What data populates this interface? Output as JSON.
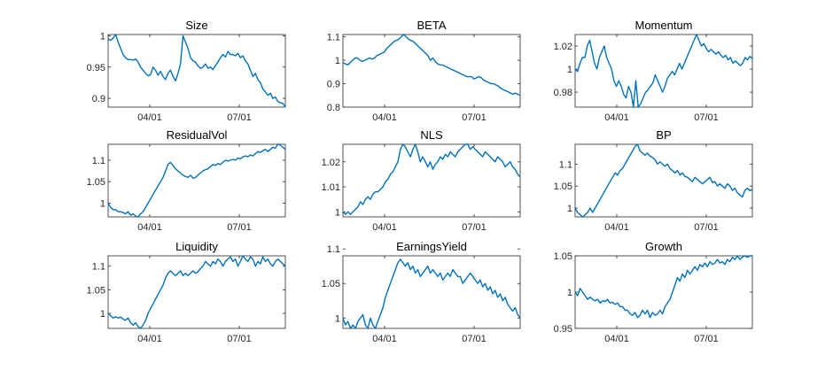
{
  "figure": {
    "line_color": "#0072BD"
  },
  "chart_data": [
    {
      "type": "line",
      "title": "Size",
      "xlabel": "",
      "ylabel": "",
      "x_ticks": [
        "04/01",
        "07/01"
      ],
      "y_ticks": [
        "0.9",
        "0.95",
        "1"
      ],
      "y_tick_values": [
        0.9,
        0.95,
        1.0
      ],
      "ylim": [
        0.886,
        1.002
      ],
      "series": [
        {
          "values": [
            0.995,
            0.993,
            0.996,
            1.002,
            0.99,
            0.98,
            0.97,
            0.965,
            0.962,
            0.962,
            0.961,
            0.963,
            0.958,
            0.95,
            0.945,
            0.94,
            0.936,
            0.938,
            0.95,
            0.945,
            0.937,
            0.943,
            0.935,
            0.93,
            0.94,
            0.945,
            0.935,
            0.928,
            0.94,
            0.955,
            1.0,
            0.99,
            0.98,
            0.965,
            0.96,
            0.958,
            0.952,
            0.948,
            0.95,
            0.955,
            0.948,
            0.95,
            0.946,
            0.952,
            0.958,
            0.965,
            0.97,
            0.966,
            0.975,
            0.97,
            0.97,
            0.968,
            0.972,
            0.965,
            0.968,
            0.96,
            0.955,
            0.945,
            0.935,
            0.94,
            0.93,
            0.925,
            0.915,
            0.91,
            0.905,
            0.908,
            0.9,
            0.902,
            0.895,
            0.893,
            0.892,
            0.886
          ]
        }
      ]
    },
    {
      "type": "line",
      "title": "BETA",
      "xlabel": "",
      "ylabel": "",
      "x_ticks": [
        "04/01",
        "07/01"
      ],
      "y_ticks": [
        "0.8",
        "0.9",
        "1",
        "1.1"
      ],
      "y_tick_values": [
        0.8,
        0.9,
        1.0,
        1.1
      ],
      "ylim": [
        0.8,
        1.11
      ],
      "series": [
        {
          "values": [
            0.99,
            0.985,
            0.98,
            0.99,
            1.0,
            1.01,
            1.01,
            1.0,
            0.995,
            1.0,
            1.005,
            1.01,
            1.005,
            1.01,
            1.02,
            1.025,
            1.03,
            1.035,
            1.05,
            1.06,
            1.07,
            1.08,
            1.085,
            1.09,
            1.1,
            1.11,
            1.1,
            1.09,
            1.085,
            1.08,
            1.07,
            1.06,
            1.05,
            1.04,
            1.03,
            1.02,
            1.0,
            1.01,
            0.995,
            0.985,
            0.98,
            0.98,
            0.975,
            0.97,
            0.965,
            0.96,
            0.955,
            0.95,
            0.945,
            0.94,
            0.935,
            0.93,
            0.93,
            0.93,
            0.92,
            0.925,
            0.93,
            0.925,
            0.915,
            0.91,
            0.905,
            0.9,
            0.9,
            0.895,
            0.89,
            0.88,
            0.875,
            0.87,
            0.865,
            0.86,
            0.855,
            0.86,
            0.855,
            0.85
          ]
        }
      ]
    },
    {
      "type": "line",
      "title": "Momentum",
      "xlabel": "",
      "ylabel": "",
      "x_ticks": [
        "04/01",
        "07/01"
      ],
      "y_ticks": [
        "0.98",
        "1",
        "1.02"
      ],
      "y_tick_values": [
        0.98,
        1.0,
        1.02
      ],
      "ylim": [
        0.967,
        1.03
      ],
      "series": [
        {
          "values": [
            1.0,
            0.998,
            1.005,
            1.01,
            1.01,
            1.02,
            1.025,
            1.015,
            1.005,
            1.0,
            1.01,
            1.015,
            1.02,
            1.01,
            1.005,
            1.0,
            0.99,
            0.985,
            0.99,
            0.985,
            0.978,
            0.975,
            0.985,
            0.98,
            0.967,
            0.99,
            0.967,
            0.97,
            0.975,
            0.98,
            0.982,
            0.985,
            0.988,
            0.995,
            0.99,
            0.985,
            0.98,
            0.985,
            0.992,
            0.995,
            0.998,
            0.995,
            1.0,
            1.005,
            1.0,
            1.005,
            1.01,
            1.015,
            1.02,
            1.025,
            1.03,
            1.025,
            1.02,
            1.022,
            1.018,
            1.015,
            1.017,
            1.015,
            1.013,
            1.015,
            1.012,
            1.01,
            1.012,
            1.008,
            1.01,
            1.005,
            1.007,
            1.005,
            1.003,
            1.005,
            1.01,
            1.008,
            1.011,
            1.009
          ]
        }
      ]
    },
    {
      "type": "line",
      "title": "ResidualVol",
      "xlabel": "",
      "ylabel": "",
      "x_ticks": [
        "04/01",
        "07/01"
      ],
      "y_ticks": [
        "1",
        "1.05",
        "1.1"
      ],
      "y_tick_values": [
        1.0,
        1.05,
        1.1
      ],
      "ylim": [
        0.968,
        1.137
      ],
      "series": [
        {
          "values": [
            1.0,
            0.99,
            0.985,
            0.985,
            0.98,
            0.98,
            0.978,
            0.975,
            0.98,
            0.972,
            0.975,
            0.97,
            0.968,
            0.975,
            0.98,
            0.99,
            1.0,
            1.01,
            1.02,
            1.03,
            1.04,
            1.05,
            1.06,
            1.075,
            1.09,
            1.095,
            1.088,
            1.08,
            1.075,
            1.07,
            1.065,
            1.062,
            1.06,
            1.065,
            1.058,
            1.06,
            1.065,
            1.07,
            1.075,
            1.078,
            1.08,
            1.085,
            1.09,
            1.088,
            1.092,
            1.09,
            1.095,
            1.1,
            1.098,
            1.1,
            1.102,
            1.1,
            1.105,
            1.103,
            1.108,
            1.11,
            1.108,
            1.112,
            1.11,
            1.115,
            1.12,
            1.118,
            1.122,
            1.125,
            1.12,
            1.125,
            1.13,
            1.128,
            1.137,
            1.135,
            1.13,
            1.125
          ]
        }
      ]
    },
    {
      "type": "line",
      "title": "NLS",
      "xlabel": "",
      "ylabel": "",
      "x_ticks": [
        "04/01",
        "07/01"
      ],
      "y_ticks": [
        "1",
        "1.01",
        "1.02"
      ],
      "y_tick_values": [
        1.0,
        1.01,
        1.02
      ],
      "ylim": [
        0.998,
        1.027
      ],
      "series": [
        {
          "values": [
            1.0,
            0.999,
            1.0,
            0.999,
            1.0,
            1.001,
            1.002,
            1.004,
            1.003,
            1.005,
            1.006,
            1.005,
            1.007,
            1.008,
            1.008,
            1.009,
            1.01,
            1.012,
            1.013,
            1.015,
            1.016,
            1.018,
            1.02,
            1.025,
            1.027,
            1.026,
            1.024,
            1.022,
            1.025,
            1.027,
            1.024,
            1.02,
            1.022,
            1.02,
            1.018,
            1.02,
            1.017,
            1.019,
            1.02,
            1.022,
            1.021,
            1.023,
            1.022,
            1.024,
            1.023,
            1.022,
            1.024,
            1.025,
            1.026,
            1.027,
            1.027,
            1.025,
            1.026,
            1.025,
            1.024,
            1.023,
            1.022,
            1.024,
            1.023,
            1.022,
            1.021,
            1.02,
            1.022,
            1.021,
            1.02,
            1.018,
            1.019,
            1.02,
            1.018,
            1.017,
            1.015,
            1.014
          ]
        }
      ]
    },
    {
      "type": "line",
      "title": "BP",
      "xlabel": "",
      "ylabel": "",
      "x_ticks": [
        "04/01",
        "07/01"
      ],
      "y_ticks": [
        "1",
        "1.05",
        "1.1"
      ],
      "y_tick_values": [
        1.0,
        1.05,
        1.1
      ],
      "ylim": [
        0.98,
        1.145
      ],
      "series": [
        {
          "values": [
            1.0,
            0.99,
            0.985,
            0.98,
            0.985,
            0.99,
            1.0,
            0.99,
            1.0,
            1.01,
            1.02,
            1.03,
            1.04,
            1.05,
            1.06,
            1.07,
            1.08,
            1.075,
            1.085,
            1.09,
            1.1,
            1.11,
            1.12,
            1.13,
            1.14,
            1.145,
            1.13,
            1.125,
            1.12,
            1.125,
            1.118,
            1.115,
            1.11,
            1.1,
            1.105,
            1.1,
            1.095,
            1.1,
            1.09,
            1.085,
            1.08,
            1.085,
            1.075,
            1.08,
            1.072,
            1.07,
            1.065,
            1.06,
            1.07,
            1.065,
            1.06,
            1.055,
            1.06,
            1.065,
            1.07,
            1.058,
            1.06,
            1.05,
            1.055,
            1.05,
            1.045,
            1.055,
            1.05,
            1.04,
            1.045,
            1.035,
            1.03,
            1.025,
            1.04,
            1.045,
            1.04,
            1.042
          ]
        }
      ]
    },
    {
      "type": "line",
      "title": "Liquidity",
      "xlabel": "",
      "ylabel": "",
      "x_ticks": [
        "04/01",
        "07/01"
      ],
      "y_ticks": [
        "1",
        "1.05",
        "1.1"
      ],
      "y_tick_values": [
        1.0,
        1.05,
        1.1
      ],
      "ylim": [
        0.968,
        1.122
      ],
      "series": [
        {
          "values": [
            1.0,
            0.995,
            0.99,
            0.993,
            0.99,
            0.992,
            0.988,
            0.985,
            0.99,
            0.98,
            0.975,
            0.98,
            0.972,
            0.968,
            0.975,
            0.985,
            1.0,
            1.01,
            1.02,
            1.03,
            1.04,
            1.05,
            1.06,
            1.075,
            1.085,
            1.09,
            1.085,
            1.08,
            1.085,
            1.09,
            1.08,
            1.085,
            1.08,
            1.085,
            1.09,
            1.085,
            1.088,
            1.095,
            1.1,
            1.11,
            1.105,
            1.1,
            1.11,
            1.105,
            1.115,
            1.11,
            1.1,
            1.11,
            1.115,
            1.12,
            1.11,
            1.115,
            1.1,
            1.11,
            1.122,
            1.115,
            1.11,
            1.12,
            1.115,
            1.1,
            1.11,
            1.105,
            1.12,
            1.11,
            1.115,
            1.105,
            1.1,
            1.11,
            1.115,
            1.11,
            1.105,
            1.1
          ]
        }
      ]
    },
    {
      "type": "line",
      "title": "EarningsYield",
      "xlabel": "",
      "ylabel": "",
      "x_ticks": [
        "04/01",
        "07/01"
      ],
      "y_ticks": [
        "1",
        "1.05",
        "1.1"
      ],
      "y_tick_values": [
        1.0,
        1.05,
        1.1
      ],
      "ylim": [
        0.985,
        1.09
      ],
      "series": [
        {
          "values": [
            1.0,
            0.99,
            0.995,
            0.985,
            0.99,
            0.985,
            0.995,
            1.0,
            1.005,
            0.99,
            0.985,
            1.0,
            0.99,
            0.985,
            0.995,
            1.005,
            1.015,
            1.03,
            1.04,
            1.05,
            1.06,
            1.07,
            1.08,
            1.085,
            1.08,
            1.075,
            1.08,
            1.07,
            1.075,
            1.065,
            1.07,
            1.06,
            1.065,
            1.07,
            1.075,
            1.065,
            1.07,
            1.065,
            1.06,
            1.065,
            1.055,
            1.06,
            1.065,
            1.06,
            1.07,
            1.065,
            1.06,
            1.06,
            1.05,
            1.055,
            1.06,
            1.065,
            1.06,
            1.055,
            1.05,
            1.055,
            1.045,
            1.05,
            1.04,
            1.045,
            1.035,
            1.04,
            1.03,
            1.035,
            1.025,
            1.03,
            1.02,
            1.015,
            1.01,
            1.015,
            1.005,
            1.0
          ]
        }
      ]
    },
    {
      "type": "line",
      "title": "Growth",
      "xlabel": "",
      "ylabel": "",
      "x_ticks": [
        "04/01",
        "07/01"
      ],
      "y_ticks": [
        "0.95",
        "1",
        "1.05"
      ],
      "y_tick_values": [
        0.95,
        1.0,
        1.05
      ],
      "ylim": [
        0.95,
        1.05
      ],
      "series": [
        {
          "values": [
            1.0,
            0.995,
            1.005,
            1.0,
            0.995,
            0.99,
            0.993,
            0.99,
            0.988,
            0.99,
            0.985,
            0.988,
            0.987,
            0.99,
            0.985,
            0.986,
            0.983,
            0.985,
            0.98,
            0.98,
            0.975,
            0.975,
            0.97,
            0.968,
            0.972,
            0.965,
            0.968,
            0.975,
            0.97,
            0.975,
            0.965,
            0.972,
            0.968,
            0.97,
            0.975,
            0.97,
            0.98,
            0.985,
            0.99,
            1.0,
            1.01,
            1.02,
            1.015,
            1.025,
            1.02,
            1.03,
            1.025,
            1.03,
            1.035,
            1.03,
            1.038,
            1.035,
            1.04,
            1.035,
            1.042,
            1.038,
            1.04,
            1.045,
            1.04,
            1.042,
            1.038,
            1.045,
            1.042,
            1.048,
            1.045,
            1.05,
            1.045,
            1.048,
            1.05,
            1.048,
            1.05,
            1.05
          ]
        }
      ]
    }
  ]
}
